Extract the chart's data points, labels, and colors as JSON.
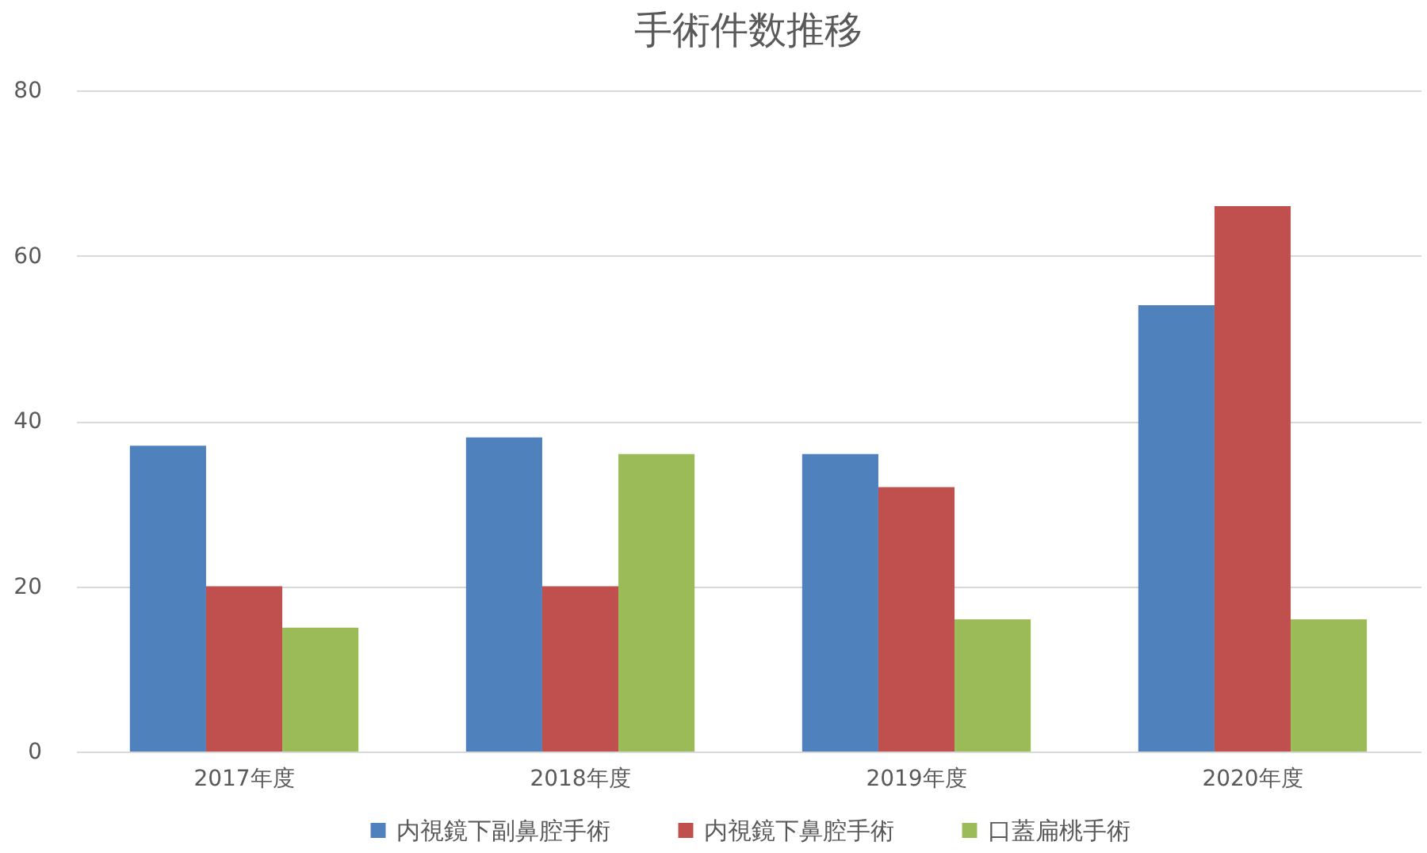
{
  "chart_data": {
    "type": "bar",
    "title": "手術件数推移",
    "categories": [
      "2017年度",
      "2018年度",
      "2019年度",
      "2020年度"
    ],
    "series": [
      {
        "name": "内視鏡下副鼻腔手術",
        "color": "#4f81bd",
        "values": [
          37,
          38,
          36,
          54
        ]
      },
      {
        "name": "内視鏡下鼻腔手術",
        "color": "#c0504d",
        "values": [
          20,
          20,
          32,
          66
        ]
      },
      {
        "name": "口蓋扁桃手術",
        "color": "#9bbb59",
        "values": [
          15,
          36,
          16,
          16
        ]
      }
    ],
    "ylim": [
      0,
      80
    ],
    "yticks": [
      0,
      20,
      40,
      60,
      80
    ],
    "grid": "y",
    "legend": "bottom"
  }
}
